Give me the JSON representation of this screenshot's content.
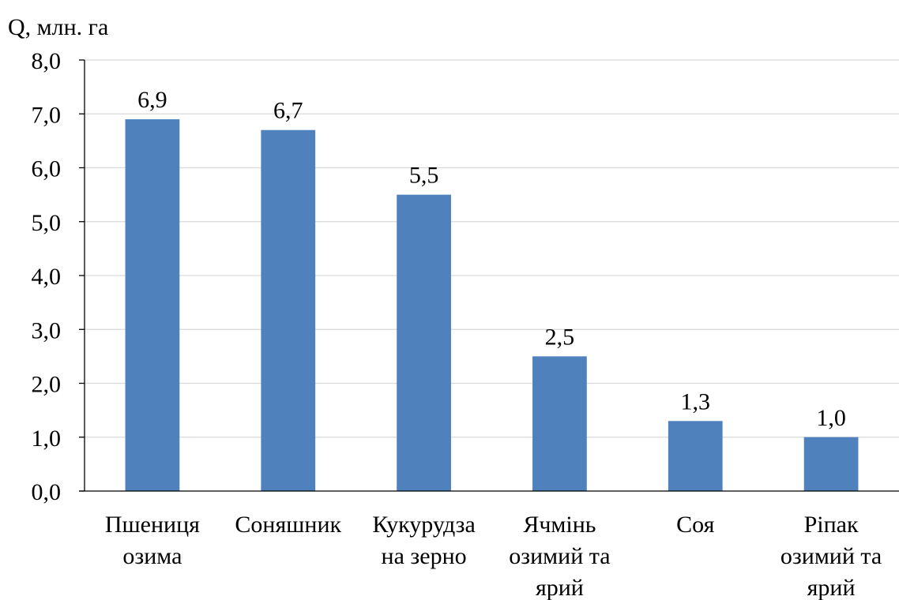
{
  "chart_data": {
    "type": "bar",
    "ylabel": "Q, млн. га",
    "xlabel": "",
    "ylim": [
      0,
      8
    ],
    "ytick_step": 1,
    "ytick_labels": [
      "0,0",
      "1,0",
      "2,0",
      "3,0",
      "4,0",
      "5,0",
      "6,0",
      "7,0",
      "8,0"
    ],
    "grid": true,
    "legend": "none",
    "categories": [
      [
        "Пшениця",
        "озима"
      ],
      [
        "Соняшник"
      ],
      [
        "Кукурудза",
        "на зерно"
      ],
      [
        "Ячмінь",
        "озимий та",
        "ярий"
      ],
      [
        "Соя"
      ],
      [
        "Ріпак",
        "озимий та",
        "ярий"
      ]
    ],
    "values": [
      6.9,
      6.7,
      5.5,
      2.5,
      1.3,
      1.0
    ],
    "data_labels": [
      "6,9",
      "6,7",
      "5,5",
      "2,5",
      "1,3",
      "1,0"
    ],
    "colors": {
      "bar": "#4f81bd",
      "grid": "#d9d9d9",
      "axis": "#000000",
      "text": "#000000"
    }
  }
}
